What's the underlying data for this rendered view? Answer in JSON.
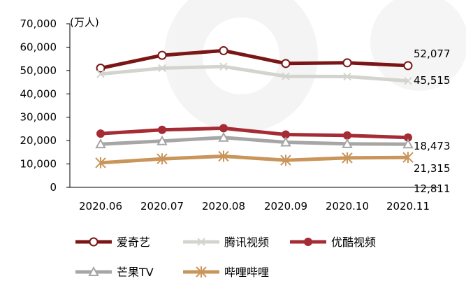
{
  "chart_data": {
    "type": "line",
    "unit_label": "(万人)",
    "categories": [
      "2020.06",
      "2020.07",
      "2020.08",
      "2020.09",
      "2020.10",
      "2020.11"
    ],
    "y_ticks": [
      "0",
      "10,000",
      "20,000",
      "30,000",
      "40,000",
      "50,000",
      "60,000",
      "70,000"
    ],
    "ylim": [
      0,
      70000
    ],
    "grid": false,
    "legend_position": "bottom",
    "series": [
      {
        "name": "爱奇艺",
        "values": [
          51000,
          56500,
          58500,
          53000,
          53300,
          52077
        ],
        "color": "#7a1616",
        "marker": "circle-open",
        "end_label": "52,077"
      },
      {
        "name": "腾讯视频",
        "values": [
          48500,
          51000,
          51700,
          47500,
          47400,
          45515
        ],
        "color": "#d4d4cf",
        "marker": "x",
        "end_label": "45,515"
      },
      {
        "name": "优酷视频",
        "values": [
          23000,
          24600,
          25300,
          22600,
          22200,
          21315
        ],
        "color": "#a52b35",
        "marker": "circle-filled",
        "end_label": "21,315"
      },
      {
        "name": "芒果TV",
        "values": [
          18500,
          19800,
          21300,
          19300,
          18600,
          18473
        ],
        "color": "#a6a6a6",
        "marker": "triangle-open",
        "end_label": "18,473"
      },
      {
        "name": "哔哩哔哩",
        "values": [
          10500,
          12200,
          13300,
          11600,
          12600,
          12811
        ],
        "color": "#c9955a",
        "marker": "asterisk",
        "end_label": "12,811"
      }
    ]
  }
}
